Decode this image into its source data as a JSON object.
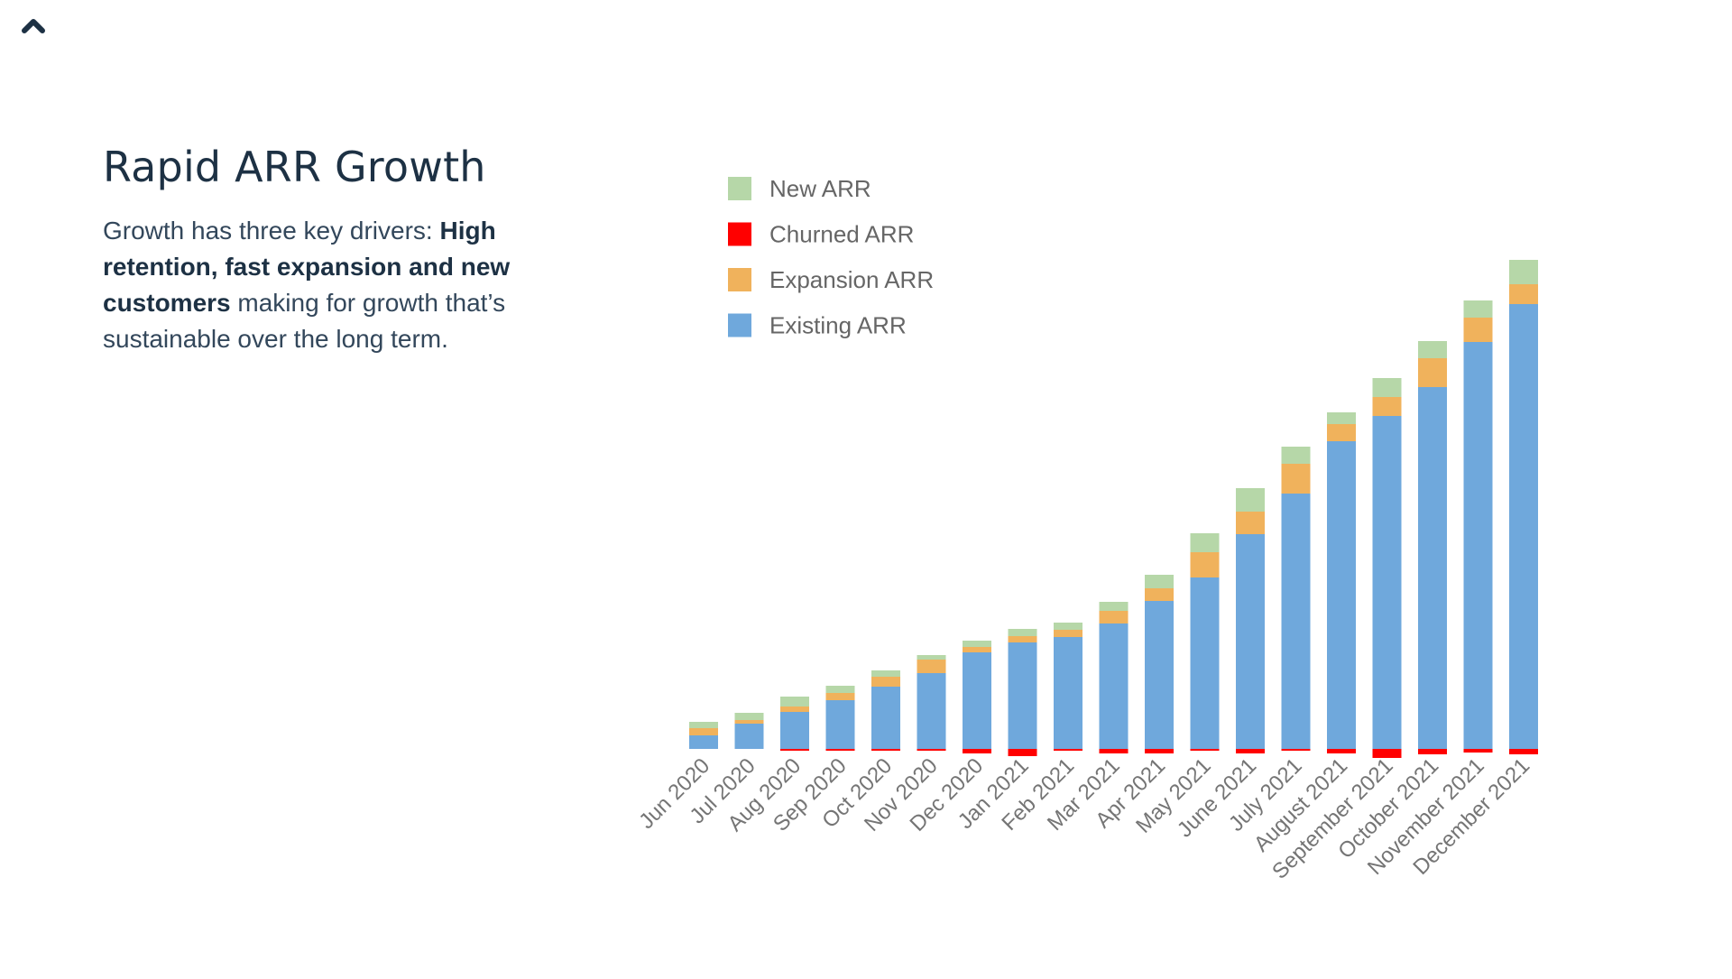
{
  "nav": {
    "up_icon": "chevron-up-icon"
  },
  "headline": {
    "title": "Rapid ARR Growth",
    "desc_prefix": "Growth has three key drivers: ",
    "desc_bold": "High retention, fast expansion and new customers",
    "desc_suffix": " making for growth that’s sustainable over the long term."
  },
  "chart_data": {
    "type": "bar",
    "stacked": true,
    "grid": false,
    "legend_position": "top-left",
    "categories": [
      "Jun 2020",
      "Jul 2020",
      "Aug 2020",
      "Sep 2020",
      "Oct 2020",
      "Nov 2020",
      "Dec 2020",
      "Jan 2021",
      "Feb 2021",
      "Mar 2021",
      "Apr 2021",
      "May 2021",
      "June 2021",
      "July 2021",
      "August 2021",
      "September 2021",
      "October 2021",
      "November 2021",
      "December 2021"
    ],
    "series": [
      {
        "name": "New ARR",
        "color": "#b6d7a8",
        "values": [
          7,
          8,
          11,
          8,
          7,
          5,
          7,
          8,
          8,
          10,
          15,
          21,
          26,
          19,
          13,
          21,
          19,
          19,
          27
        ]
      },
      {
        "name": "Churned ARR",
        "color": "#ff0000",
        "values": [
          0,
          0,
          -2,
          -2,
          -2,
          -2,
          -5,
          -8,
          -2,
          -5,
          -5,
          -2,
          -5,
          -2,
          -5,
          -10,
          -6,
          -4,
          -6
        ]
      },
      {
        "name": "Expansion ARR",
        "color": "#f0b25c",
        "values": [
          8,
          4,
          6,
          8,
          11,
          15,
          6,
          7,
          8,
          14,
          14,
          28,
          25,
          33,
          19,
          21,
          32,
          27,
          22
        ]
      },
      {
        "name": "Existing ARR",
        "color": "#6fa8dc",
        "values": [
          15,
          28,
          41,
          54,
          69,
          84,
          107,
          118,
          124,
          139,
          164,
          190,
          238,
          283,
          341,
          369,
          401,
          451,
          493
        ]
      }
    ],
    "ylim": [
      -12,
      560
    ]
  }
}
